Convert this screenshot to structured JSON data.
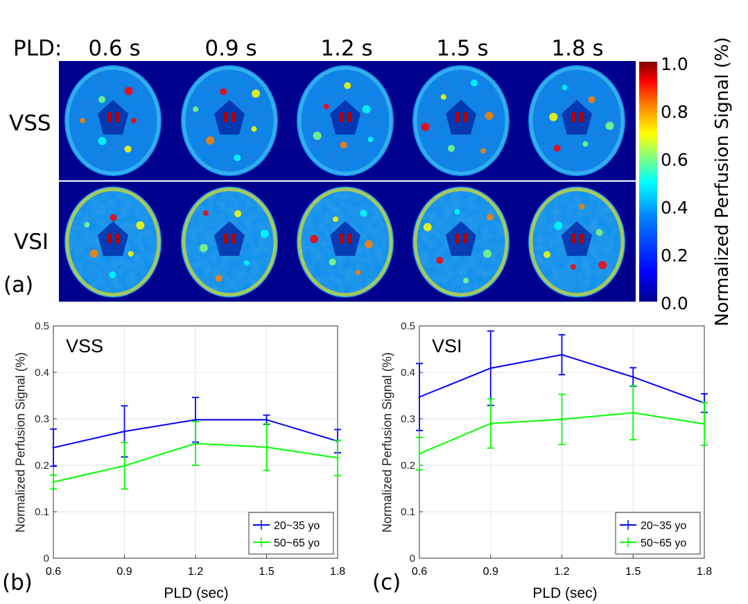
{
  "figure": {
    "pld_prefix": "PLD:",
    "pld_headers": [
      "0.6 s",
      "0.9 s",
      "1.2 s",
      "1.5 s",
      "1.8 s"
    ],
    "row_labels": [
      "VSS",
      "VSI"
    ],
    "panel_labels": [
      "(a)",
      "(b)",
      "(c)"
    ],
    "colorbar": {
      "title": "Normalized Perfusion Signal (%)",
      "ticks": [
        "1.0",
        "0.8",
        "0.6",
        "0.4",
        "0.2",
        "0.0"
      ],
      "colormap": "jet",
      "min": 0.0,
      "max": 1.0
    }
  },
  "chart_data": [
    {
      "type": "line",
      "title": "VSS",
      "xlabel": "PLD (sec)",
      "ylabel": "Normalized Perfusion Signal (%)",
      "x": [
        0.6,
        0.9,
        1.2,
        1.5,
        1.8
      ],
      "x_ticks": [
        "0.6",
        "0.9",
        "1.2",
        "1.5",
        "1.8"
      ],
      "y_ticks": [
        "0",
        "0.1",
        "0.2",
        "0.3",
        "0.4",
        "0.5"
      ],
      "xlim": [
        0.6,
        1.8
      ],
      "ylim": [
        0,
        0.5
      ],
      "grid": true,
      "legend_position": "bottom-right",
      "series": [
        {
          "name": "20~35 yo",
          "color": "#0000ff",
          "values": [
            0.238,
            0.273,
            0.298,
            0.298,
            0.252
          ],
          "errors": [
            0.04,
            0.055,
            0.048,
            0.01,
            0.025
          ]
        },
        {
          "name": "50~65 yo",
          "color": "#00ff00",
          "values": [
            0.164,
            0.199,
            0.247,
            0.239,
            0.216
          ],
          "errors": [
            0.015,
            0.05,
            0.047,
            0.05,
            0.038
          ]
        }
      ]
    },
    {
      "type": "line",
      "title": "VSI",
      "xlabel": "PLD (sec)",
      "ylabel": "Normalized Perfusion Signal (%)",
      "x": [
        0.6,
        0.9,
        1.2,
        1.5,
        1.8
      ],
      "x_ticks": [
        "0.6",
        "0.9",
        "1.2",
        "1.5",
        "1.8"
      ],
      "y_ticks": [
        "0",
        "0.1",
        "0.2",
        "0.3",
        "0.4",
        "0.5"
      ],
      "xlim": [
        0.6,
        1.8
      ],
      "ylim": [
        0,
        0.5
      ],
      "grid": true,
      "legend_position": "bottom-right",
      "series": [
        {
          "name": "20~35 yo",
          "color": "#0000ff",
          "values": [
            0.347,
            0.409,
            0.438,
            0.39,
            0.334
          ],
          "errors": [
            0.072,
            0.08,
            0.043,
            0.02,
            0.02
          ]
        },
        {
          "name": "50~65 yo",
          "color": "#00ff00",
          "values": [
            0.225,
            0.29,
            0.299,
            0.313,
            0.289
          ],
          "errors": [
            0.035,
            0.053,
            0.054,
            0.058,
            0.046
          ]
        }
      ]
    }
  ]
}
